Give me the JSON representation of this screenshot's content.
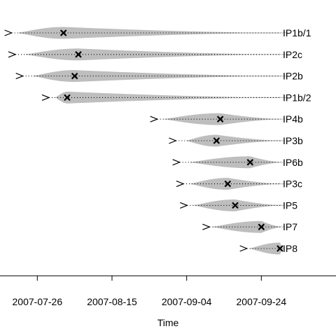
{
  "chart_data": {
    "type": "violin-timeline",
    "xlabel": "Time",
    "xlim": [
      "2007-07-16",
      "2007-10-14"
    ],
    "x_ticks": [
      "2007-07-26",
      "2007-08-15",
      "2007-09-04",
      "2007-09-24"
    ],
    "colors": {
      "fill": "#bebebe",
      "line": "#000000"
    },
    "rows": [
      {
        "label": "IP1b/1",
        "start": "2007-07-18",
        "peak_start": "2007-07-21",
        "mark": "2007-08-02",
        "end": "2007-10-01"
      },
      {
        "label": "IP2c",
        "start": "2007-07-19",
        "peak_start": "2007-07-23",
        "mark": "2007-08-06",
        "end": "2007-10-01"
      },
      {
        "label": "IP2b",
        "start": "2007-07-21",
        "peak_start": "2007-07-25",
        "mark": "2007-08-05",
        "end": "2007-10-01"
      },
      {
        "label": "IP1b/2",
        "start": "2007-07-28",
        "peak_start": "2007-07-31",
        "mark": "2007-08-03",
        "end": "2007-10-01"
      },
      {
        "label": "IP4b",
        "start": "2007-08-26",
        "peak_start": "2007-08-29",
        "mark": "2007-09-13",
        "end": "2007-09-30"
      },
      {
        "label": "IP3b",
        "start": "2007-08-31",
        "peak_start": "2007-09-04",
        "mark": "2007-09-12",
        "end": "2007-09-30"
      },
      {
        "label": "IP6b",
        "start": "2007-09-01",
        "peak_start": "2007-09-05",
        "mark": "2007-09-21",
        "end": "2007-09-30"
      },
      {
        "label": "IP3c",
        "start": "2007-09-02",
        "peak_start": "2007-09-05",
        "mark": "2007-09-15",
        "end": "2007-09-30"
      },
      {
        "label": "IP5",
        "start": "2007-09-03",
        "peak_start": "2007-09-06",
        "mark": "2007-09-17",
        "end": "2007-09-30"
      },
      {
        "label": "IP7",
        "start": "2007-09-09",
        "peak_start": "2007-09-11",
        "mark": "2007-09-24",
        "end": "2007-09-30"
      },
      {
        "label": "IP8",
        "start": "2007-09-19",
        "peak_start": "2007-09-21",
        "mark": "2007-09-29",
        "end": "2007-09-30"
      }
    ]
  }
}
